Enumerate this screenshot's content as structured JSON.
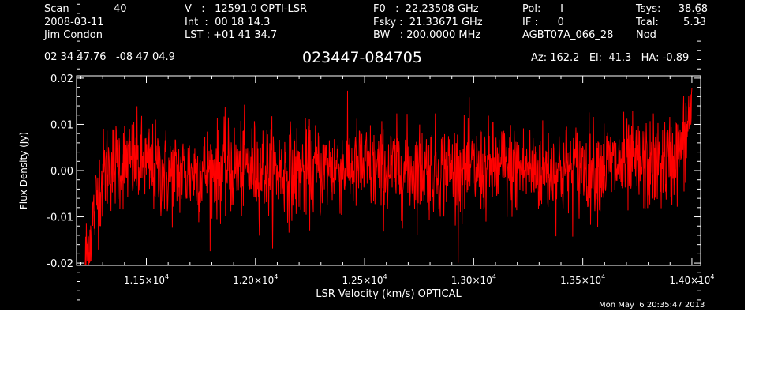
{
  "header": {
    "col1": {
      "scan_label": "Scan",
      "scan_value": "40",
      "date": "2008-03-11",
      "observer": "Jim Condon"
    },
    "col2": {
      "v_line": "V   :   12591.0 OPTI-LSR",
      "int_line": "Int  :  00 18 14.3",
      "lst_line": "LST : +01 41 34.7"
    },
    "col3": {
      "f0_line": "F0   :  22.23508 GHz",
      "fsky_line": "Fsky :  21.33671 GHz",
      "bw_line": "BW   : 200.0000 MHz"
    },
    "col4": {
      "pol_line": "Pol:      I",
      "if_line": "IF :      0",
      "project": "AGBT07A_066_28"
    },
    "col5": {
      "tsys_label": "Tsys:",
      "tsys_value": "38.68",
      "tcal_label": "Tcal:",
      "tcal_value": "5.33",
      "mode": "Nod"
    },
    "coords": "02 34 47.76   -08 47 04.9",
    "source": "023447-084705",
    "pointing": "Az: 162.2   El:  41.3   HA: -0.89"
  },
  "footer": {
    "timestamp": "Mon May  6 20:35:47 2013"
  },
  "colors": {
    "background": "#000000",
    "axes": "#ffffff",
    "trace": "#ff0000"
  },
  "chart_data": {
    "type": "line",
    "xlabel": "LSR Velocity (km/s) OPTICAL",
    "ylabel": "Flux Density (Jy)",
    "xlim": [
      11180,
      14040
    ],
    "ylim": [
      -0.0205,
      0.0205
    ],
    "x_ticks": [
      11500,
      12000,
      12500,
      13000,
      13500,
      14000
    ],
    "x_tick_labels": [
      {
        "mantissa": "1.15×10",
        "exponent": "4"
      },
      {
        "mantissa": "1.20×10",
        "exponent": "4"
      },
      {
        "mantissa": "1.25×10",
        "exponent": "4"
      },
      {
        "mantissa": "1.30×10",
        "exponent": "4"
      },
      {
        "mantissa": "1.35×10",
        "exponent": "4"
      },
      {
        "mantissa": "1.40×10",
        "exponent": "4"
      }
    ],
    "y_ticks": [
      -0.02,
      -0.01,
      0.0,
      0.01,
      0.02
    ],
    "y_tick_labels": [
      "-0.02",
      "-0.01",
      "0.00",
      "0.01",
      "0.02"
    ],
    "series": [
      {
        "color": "#ff0000",
        "x": [
          11220,
          11250,
          11280,
          11320,
          11400,
          11500,
          11600,
          11800,
          12000,
          12200,
          12400,
          12600,
          12800,
          13000,
          13200,
          13400,
          13600,
          13800,
          13900,
          13950,
          13980,
          14000
        ],
        "y": [
          -0.0195,
          -0.012,
          -0.004,
          0.001,
          0.002,
          0.001,
          -0.001,
          0.0,
          0.0005,
          -0.0005,
          0.001,
          0.0,
          0.0005,
          0.0,
          0.0005,
          0.0,
          0.001,
          0.001,
          0.002,
          0.004,
          0.009,
          0.016
        ],
        "noise_rms": 0.005
      }
    ]
  }
}
